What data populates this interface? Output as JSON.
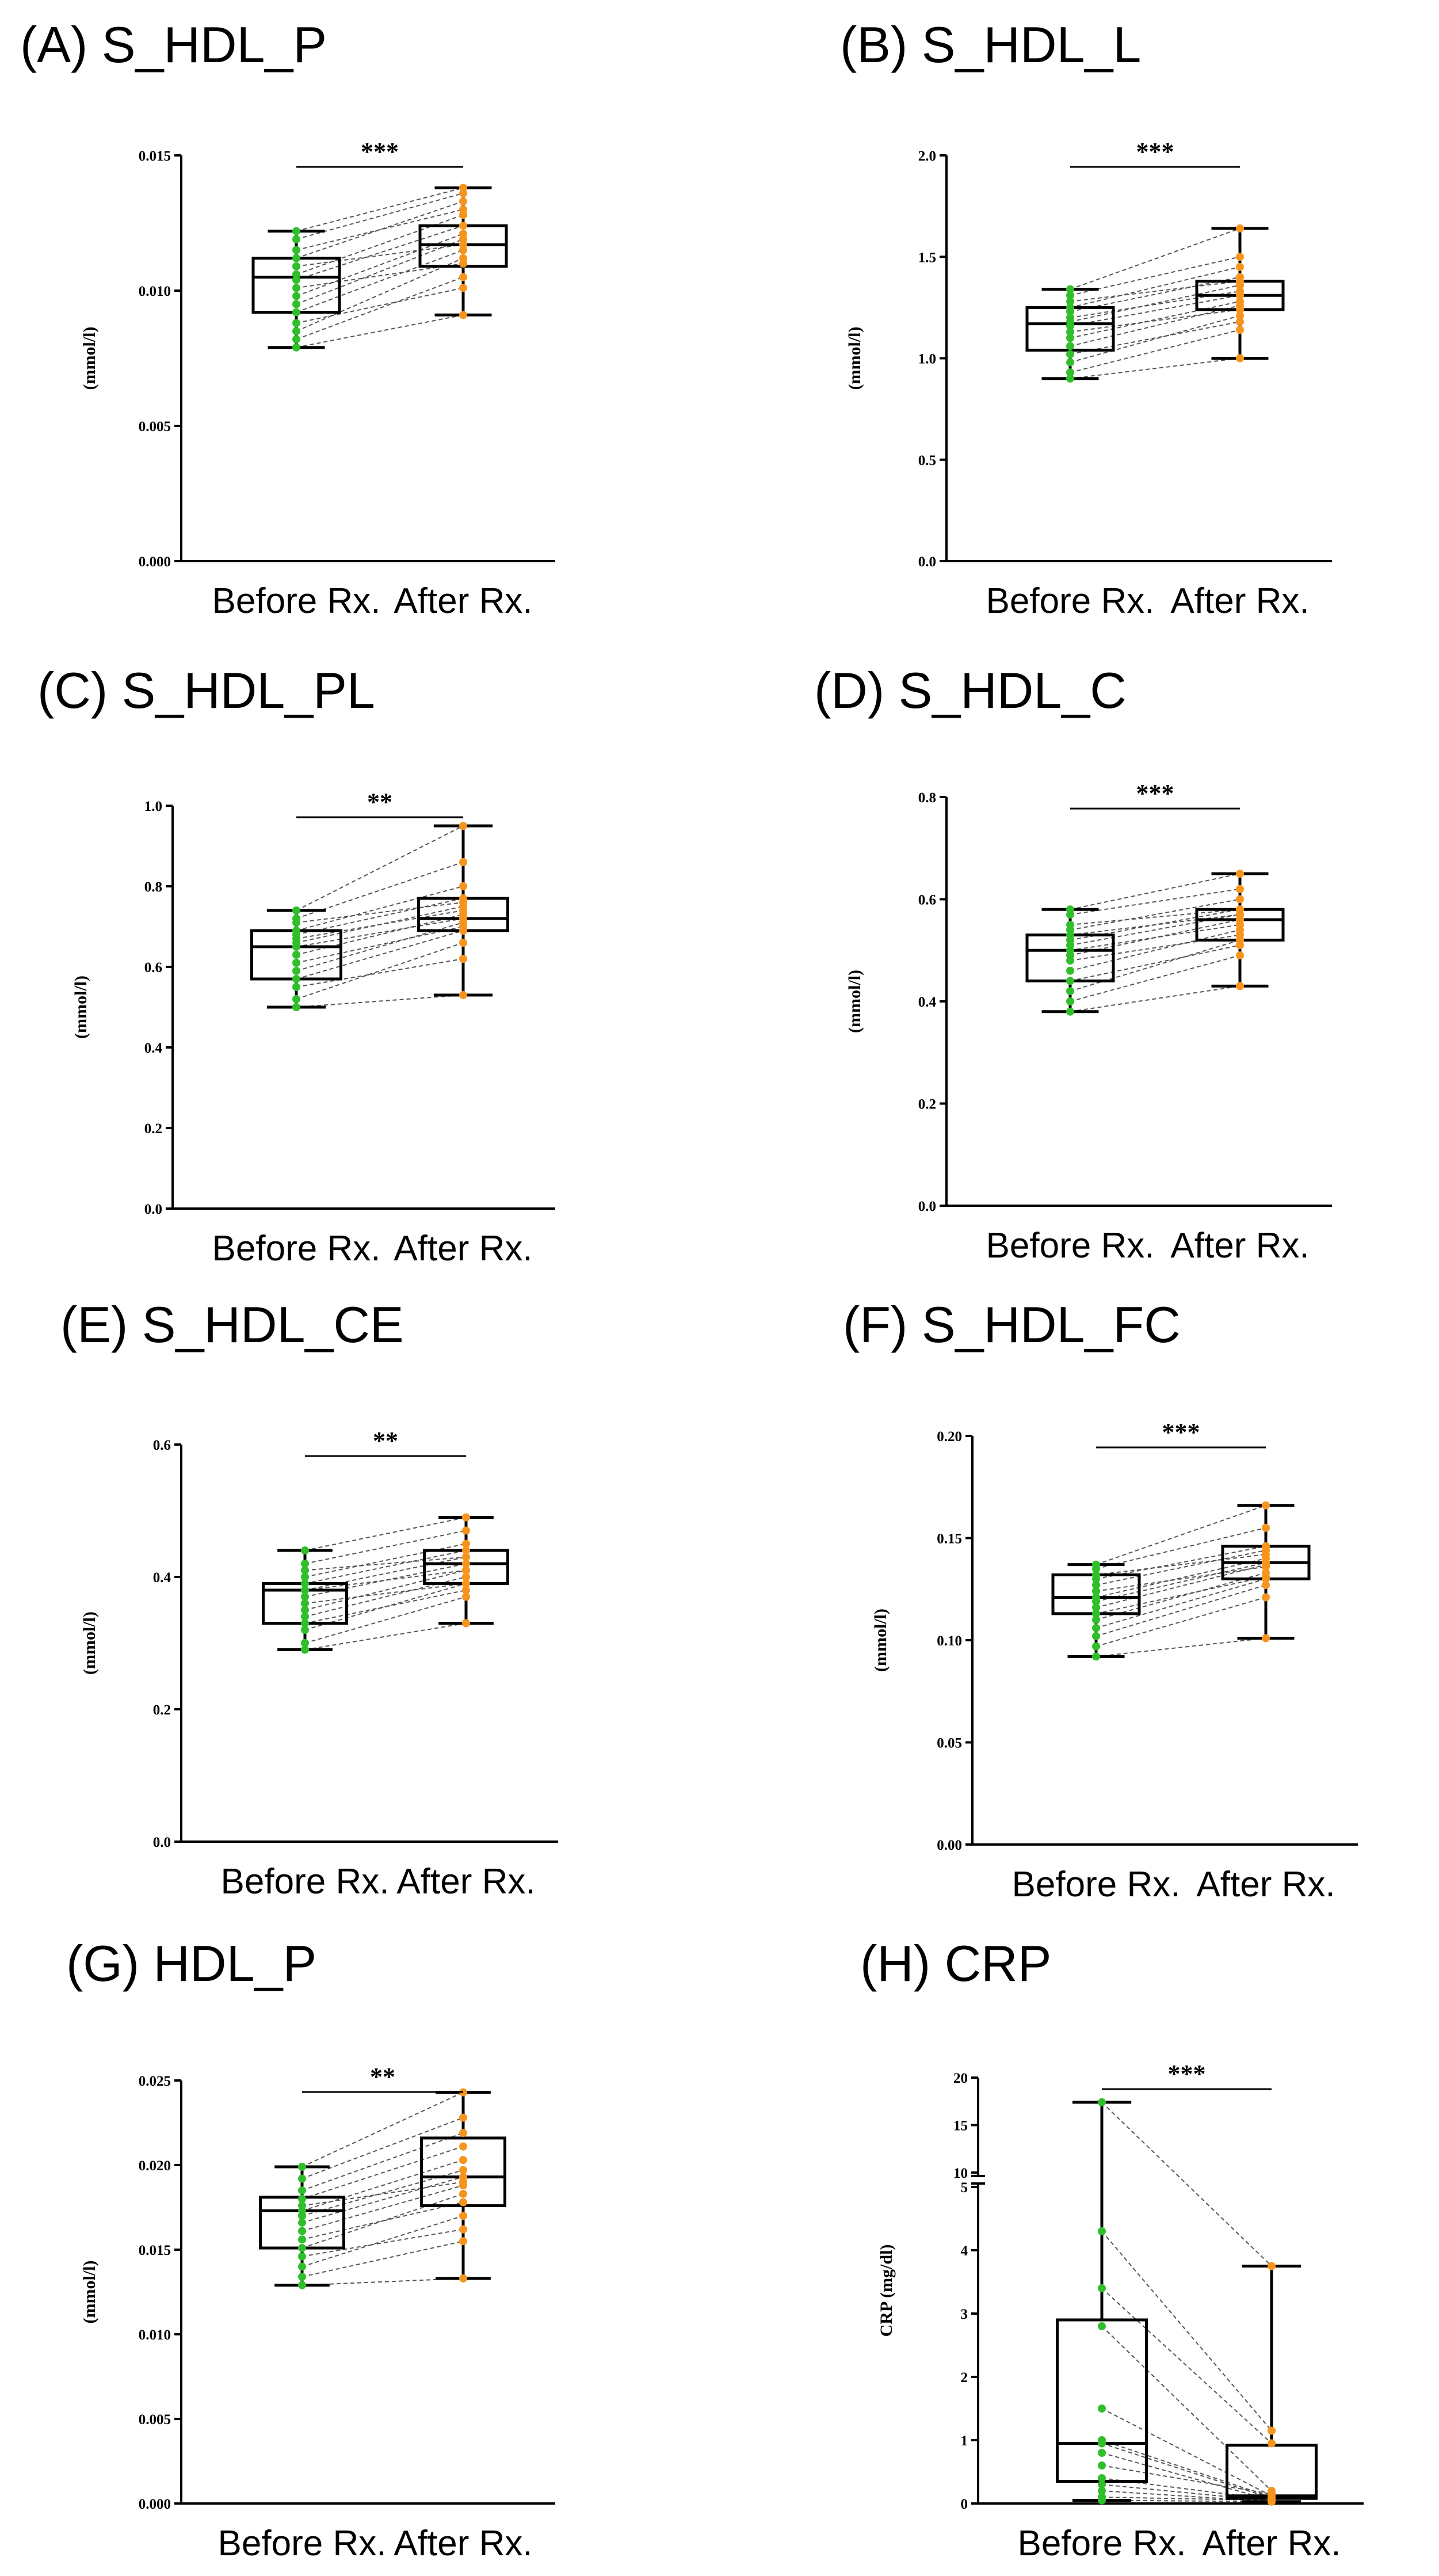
{
  "colors": {
    "before": "#2fbf2a",
    "after": "#f7941d",
    "axis": "#000000",
    "pair": "#555555"
  },
  "chart_data": [
    {
      "type": "box",
      "title": "(A) S_HDL_P",
      "ylabel": "(mmol/l)",
      "categories": [
        "Before Rx.",
        "After Rx."
      ],
      "ylim": [
        0,
        0.015
      ],
      "yticks": [
        0.0,
        0.005,
        0.01,
        0.015
      ],
      "ytick_labels": [
        "0.000",
        "0.005",
        "0.010",
        "0.015"
      ],
      "significance": "***",
      "boxes": [
        {
          "min": 0.0079,
          "q1": 0.0092,
          "median": 0.0105,
          "q3": 0.0112,
          "max": 0.0122
        },
        {
          "min": 0.0091,
          "q1": 0.0109,
          "median": 0.0117,
          "q3": 0.0124,
          "max": 0.0138
        }
      ],
      "pairs": [
        [
          0.0079,
          0.0091
        ],
        [
          0.0082,
          0.0105
        ],
        [
          0.0085,
          0.0112
        ],
        [
          0.0088,
          0.0101
        ],
        [
          0.0092,
          0.0115
        ],
        [
          0.0095,
          0.0119
        ],
        [
          0.0098,
          0.0121
        ],
        [
          0.0101,
          0.011
        ],
        [
          0.0104,
          0.0124
        ],
        [
          0.0106,
          0.0128
        ],
        [
          0.0109,
          0.0117
        ],
        [
          0.0112,
          0.0133
        ],
        [
          0.0115,
          0.013
        ],
        [
          0.0119,
          0.0136
        ],
        [
          0.0122,
          0.0138
        ]
      ]
    },
    {
      "type": "box",
      "title": "(B) S_HDL_L",
      "ylabel": "(mmol/l)",
      "categories": [
        "Before Rx.",
        "After Rx."
      ],
      "ylim": [
        0,
        2.0
      ],
      "yticks": [
        0.0,
        0.5,
        1.0,
        1.5,
        2.0
      ],
      "ytick_labels": [
        "0.0",
        "0.5",
        "1.0",
        "1.5",
        "2.0"
      ],
      "significance": "***",
      "boxes": [
        {
          "min": 0.9,
          "q1": 1.04,
          "median": 1.17,
          "q3": 1.25,
          "max": 1.34
        },
        {
          "min": 1.0,
          "q1": 1.24,
          "median": 1.31,
          "q3": 1.38,
          "max": 1.64
        }
      ],
      "pairs": [
        [
          0.9,
          1.0
        ],
        [
          0.93,
          1.14
        ],
        [
          0.98,
          1.21
        ],
        [
          1.02,
          1.18
        ],
        [
          1.06,
          1.26
        ],
        [
          1.1,
          1.28
        ],
        [
          1.13,
          1.24
        ],
        [
          1.16,
          1.31
        ],
        [
          1.18,
          1.36
        ],
        [
          1.2,
          1.33
        ],
        [
          1.23,
          1.4
        ],
        [
          1.25,
          1.45
        ],
        [
          1.28,
          1.38
        ],
        [
          1.31,
          1.5
        ],
        [
          1.34,
          1.64
        ]
      ]
    },
    {
      "type": "box",
      "title": "(C) S_HDL_PL",
      "ylabel": "(mmol/l)",
      "categories": [
        "Before Rx.",
        "After Rx."
      ],
      "ylim": [
        0,
        1.0
      ],
      "yticks": [
        0.0,
        0.2,
        0.4,
        0.6,
        0.8,
        1.0
      ],
      "ytick_labels": [
        "0.0",
        "0.2",
        "0.4",
        "0.6",
        "0.8",
        "1.0"
      ],
      "significance": "**",
      "boxes": [
        {
          "min": 0.5,
          "q1": 0.57,
          "median": 0.65,
          "q3": 0.69,
          "max": 0.74
        },
        {
          "min": 0.53,
          "q1": 0.69,
          "median": 0.72,
          "q3": 0.77,
          "max": 0.95
        }
      ],
      "pairs": [
        [
          0.5,
          0.53
        ],
        [
          0.52,
          0.66
        ],
        [
          0.55,
          0.62
        ],
        [
          0.57,
          0.69
        ],
        [
          0.59,
          0.71
        ],
        [
          0.61,
          0.7
        ],
        [
          0.63,
          0.73
        ],
        [
          0.65,
          0.72
        ],
        [
          0.66,
          0.75
        ],
        [
          0.67,
          0.74
        ],
        [
          0.68,
          0.77
        ],
        [
          0.69,
          0.8
        ],
        [
          0.71,
          0.76
        ],
        [
          0.72,
          0.86
        ],
        [
          0.74,
          0.95
        ]
      ]
    },
    {
      "type": "box",
      "title": "(D) S_HDL_C",
      "ylabel": "(mmol/l)",
      "categories": [
        "Before Rx.",
        "After Rx."
      ],
      "ylim": [
        0,
        0.8
      ],
      "yticks": [
        0.0,
        0.2,
        0.4,
        0.6,
        0.8
      ],
      "ytick_labels": [
        "0.0",
        "0.2",
        "0.4",
        "0.6",
        "0.8"
      ],
      "significance": "***",
      "boxes": [
        {
          "min": 0.38,
          "q1": 0.44,
          "median": 0.5,
          "q3": 0.53,
          "max": 0.58
        },
        {
          "min": 0.43,
          "q1": 0.52,
          "median": 0.56,
          "q3": 0.58,
          "max": 0.65
        }
      ],
      "pairs": [
        [
          0.38,
          0.43
        ],
        [
          0.4,
          0.49
        ],
        [
          0.42,
          0.52
        ],
        [
          0.44,
          0.51
        ],
        [
          0.46,
          0.54
        ],
        [
          0.48,
          0.53
        ],
        [
          0.49,
          0.56
        ],
        [
          0.5,
          0.55
        ],
        [
          0.51,
          0.57
        ],
        [
          0.52,
          0.58
        ],
        [
          0.53,
          0.57
        ],
        [
          0.54,
          0.6
        ],
        [
          0.55,
          0.58
        ],
        [
          0.57,
          0.62
        ],
        [
          0.58,
          0.65
        ]
      ]
    },
    {
      "type": "box",
      "title": "(E) S_HDL_CE",
      "ylabel": "(mmol/l)",
      "categories": [
        "Before Rx.",
        "After Rx."
      ],
      "ylim": [
        0,
        0.6
      ],
      "yticks": [
        0.0,
        0.2,
        0.4,
        0.6
      ],
      "ytick_labels": [
        "0.0",
        "0.2",
        "0.4",
        "0.6"
      ],
      "significance": "**",
      "boxes": [
        {
          "min": 0.29,
          "q1": 0.33,
          "median": 0.38,
          "q3": 0.39,
          "max": 0.44
        },
        {
          "min": 0.33,
          "q1": 0.39,
          "median": 0.42,
          "q3": 0.44,
          "max": 0.49
        }
      ],
      "pairs": [
        [
          0.29,
          0.33
        ],
        [
          0.3,
          0.37
        ],
        [
          0.32,
          0.39
        ],
        [
          0.33,
          0.38
        ],
        [
          0.34,
          0.4
        ],
        [
          0.35,
          0.41
        ],
        [
          0.36,
          0.39
        ],
        [
          0.37,
          0.42
        ],
        [
          0.38,
          0.43
        ],
        [
          0.38,
          0.41
        ],
        [
          0.39,
          0.44
        ],
        [
          0.4,
          0.45
        ],
        [
          0.41,
          0.43
        ],
        [
          0.42,
          0.47
        ],
        [
          0.44,
          0.49
        ]
      ]
    },
    {
      "type": "box",
      "title": "(F) S_HDL_FC",
      "ylabel": "(mmol/l)",
      "categories": [
        "Before Rx.",
        "After Rx."
      ],
      "ylim": [
        0,
        0.2
      ],
      "yticks": [
        0.0,
        0.05,
        0.1,
        0.15,
        0.2
      ],
      "ytick_labels": [
        "0.00",
        "0.05",
        "0.10",
        "0.15",
        "0.20"
      ],
      "significance": "***",
      "boxes": [
        {
          "min": 0.092,
          "q1": 0.113,
          "median": 0.121,
          "q3": 0.132,
          "max": 0.137
        },
        {
          "min": 0.101,
          "q1": 0.13,
          "median": 0.138,
          "q3": 0.146,
          "max": 0.166
        }
      ],
      "pairs": [
        [
          0.092,
          0.101
        ],
        [
          0.097,
          0.121
        ],
        [
          0.102,
          0.127
        ],
        [
          0.106,
          0.13
        ],
        [
          0.11,
          0.133
        ],
        [
          0.113,
          0.131
        ],
        [
          0.116,
          0.137
        ],
        [
          0.119,
          0.138
        ],
        [
          0.121,
          0.14
        ],
        [
          0.124,
          0.136
        ],
        [
          0.127,
          0.144
        ],
        [
          0.13,
          0.146
        ],
        [
          0.132,
          0.142
        ],
        [
          0.135,
          0.155
        ],
        [
          0.137,
          0.166
        ]
      ]
    },
    {
      "type": "box",
      "title": "(G) HDL_P",
      "ylabel": "(mmol/l)",
      "categories": [
        "Before Rx.",
        "After Rx."
      ],
      "ylim": [
        0,
        0.025
      ],
      "yticks": [
        0.0,
        0.005,
        0.01,
        0.015,
        0.02,
        0.025
      ],
      "ytick_labels": [
        "0.000",
        "0.005",
        "0.010",
        "0.015",
        "0.020",
        "0.025"
      ],
      "significance": "**",
      "boxes": [
        {
          "min": 0.0129,
          "q1": 0.0151,
          "median": 0.0173,
          "q3": 0.0181,
          "max": 0.0199
        },
        {
          "min": 0.0133,
          "q1": 0.0176,
          "median": 0.0193,
          "q3": 0.0216,
          "max": 0.0243
        }
      ],
      "pairs": [
        [
          0.0129,
          0.0133
        ],
        [
          0.0134,
          0.0155
        ],
        [
          0.014,
          0.017
        ],
        [
          0.0146,
          0.0162
        ],
        [
          0.0151,
          0.0183
        ],
        [
          0.0156,
          0.0178
        ],
        [
          0.0161,
          0.0188
        ],
        [
          0.0166,
          0.0193
        ],
        [
          0.017,
          0.0197
        ],
        [
          0.0173,
          0.0203
        ],
        [
          0.0176,
          0.019
        ],
        [
          0.018,
          0.0211
        ],
        [
          0.0185,
          0.0219
        ],
        [
          0.0192,
          0.0228
        ],
        [
          0.0199,
          0.0243
        ]
      ]
    },
    {
      "type": "box",
      "broken_axis": true,
      "title": "(H) CRP",
      "ylabel": "CRP (mg/dl)",
      "categories": [
        "Before Rx.",
        "After Rx."
      ],
      "ylim": [
        0,
        20
      ],
      "break": [
        5,
        10
      ],
      "yticks": [
        0,
        1,
        2,
        3,
        4,
        5,
        10,
        15,
        20
      ],
      "ytick_labels": [
        "0",
        "1",
        "2",
        "3",
        "4",
        "5",
        "10",
        "15",
        "20"
      ],
      "significance": "***",
      "boxes": [
        {
          "min": 0.05,
          "q1": 0.35,
          "median": 0.95,
          "q3": 2.9,
          "max": 17.4
        },
        {
          "min": 0.03,
          "q1": 0.08,
          "median": 0.12,
          "q3": 0.92,
          "max": 3.75
        }
      ],
      "pairs": [
        [
          17.4,
          3.75
        ],
        [
          4.3,
          1.15
        ],
        [
          3.4,
          0.95
        ],
        [
          2.8,
          0.2
        ],
        [
          1.5,
          0.12
        ],
        [
          1.0,
          0.1
        ],
        [
          0.95,
          0.08
        ],
        [
          0.8,
          0.05
        ],
        [
          0.6,
          0.15
        ],
        [
          0.4,
          0.06
        ],
        [
          0.3,
          0.04
        ],
        [
          0.2,
          0.03
        ],
        [
          0.1,
          0.05
        ],
        [
          0.05,
          0.03
        ]
      ]
    }
  ]
}
